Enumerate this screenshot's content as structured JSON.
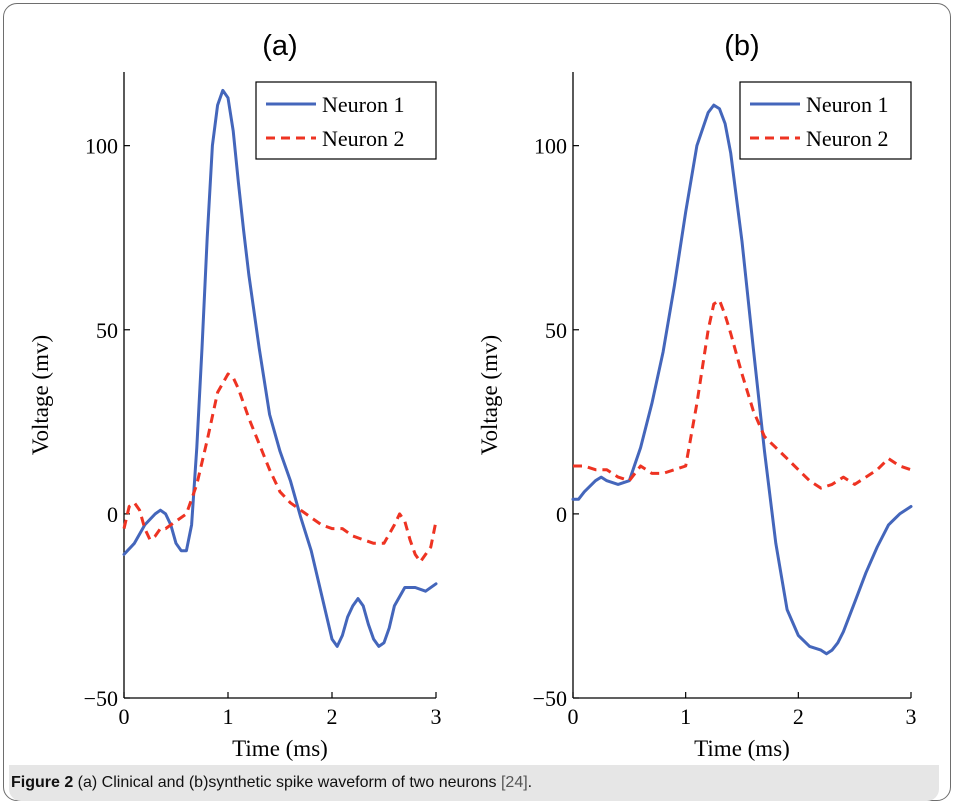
{
  "chart_data": [
    {
      "type": "line",
      "title": "(a)",
      "xlabel": "Time (ms)",
      "ylabel": "Voltage (mv)",
      "xlim": [
        0,
        3
      ],
      "ylim": [
        -50,
        120
      ],
      "xticks": [
        0,
        1,
        2,
        3
      ],
      "yticks": [
        -50,
        0,
        50,
        100
      ],
      "legend": "top-right",
      "grid": false,
      "series": [
        {
          "name": "Neuron 1",
          "color": "#4466bb",
          "style": "solid",
          "x": [
            0,
            0.1,
            0.2,
            0.3,
            0.35,
            0.4,
            0.45,
            0.5,
            0.55,
            0.6,
            0.65,
            0.7,
            0.75,
            0.8,
            0.85,
            0.9,
            0.95,
            1.0,
            1.05,
            1.1,
            1.15,
            1.2,
            1.3,
            1.4,
            1.5,
            1.6,
            1.7,
            1.8,
            1.9,
            2.0,
            2.05,
            2.1,
            2.15,
            2.2,
            2.25,
            2.3,
            2.35,
            2.4,
            2.45,
            2.5,
            2.55,
            2.6,
            2.7,
            2.8,
            2.9,
            3.0
          ],
          "y": [
            -11,
            -8,
            -3,
            0,
            1,
            0,
            -3,
            -8,
            -10,
            -10,
            -3,
            18,
            45,
            75,
            100,
            111,
            115,
            113,
            104,
            90,
            77,
            65,
            45,
            27,
            17,
            9,
            -1,
            -10,
            -22,
            -34,
            -36,
            -33,
            -28,
            -25,
            -23,
            -25,
            -30,
            -34,
            -36,
            -35,
            -31,
            -25,
            -20,
            -20,
            -21,
            -19
          ]
        },
        {
          "name": "Neuron 2",
          "color": "#ee3322",
          "style": "dashed",
          "x": [
            0,
            0.05,
            0.1,
            0.15,
            0.2,
            0.25,
            0.3,
            0.35,
            0.4,
            0.5,
            0.6,
            0.7,
            0.8,
            0.9,
            1.0,
            1.05,
            1.1,
            1.2,
            1.3,
            1.4,
            1.5,
            1.6,
            1.7,
            1.8,
            1.9,
            2.0,
            2.1,
            2.2,
            2.3,
            2.4,
            2.5,
            2.6,
            2.65,
            2.7,
            2.75,
            2.8,
            2.85,
            2.9,
            2.95,
            3.0
          ],
          "y": [
            -4,
            2,
            3,
            1,
            -4,
            -7,
            -6,
            -4,
            -4,
            -2,
            0,
            8,
            20,
            33,
            38,
            37,
            34,
            26,
            19,
            12,
            6,
            3,
            1,
            -1,
            -3,
            -4,
            -4,
            -6,
            -7,
            -8,
            -8,
            -3,
            0,
            -2,
            -7,
            -11,
            -13,
            -11,
            -9,
            -2
          ]
        }
      ]
    },
    {
      "type": "line",
      "title": "(b)",
      "xlabel": "Time (ms)",
      "ylabel": "Voltage (mv)",
      "xlim": [
        0,
        3
      ],
      "ylim": [
        -50,
        120
      ],
      "xticks": [
        0,
        1,
        2,
        3
      ],
      "yticks": [
        -50,
        0,
        50,
        100
      ],
      "legend": "top-right",
      "grid": false,
      "series": [
        {
          "name": "Neuron 1",
          "color": "#4466bb",
          "style": "solid",
          "x": [
            0,
            0.05,
            0.1,
            0.2,
            0.25,
            0.3,
            0.4,
            0.5,
            0.6,
            0.7,
            0.8,
            0.9,
            1.0,
            1.1,
            1.2,
            1.25,
            1.3,
            1.35,
            1.4,
            1.5,
            1.6,
            1.7,
            1.8,
            1.9,
            2.0,
            2.1,
            2.2,
            2.25,
            2.3,
            2.35,
            2.4,
            2.5,
            2.6,
            2.7,
            2.8,
            2.9,
            3.0
          ],
          "y": [
            4,
            4,
            6,
            9,
            10,
            9,
            8,
            9,
            18,
            30,
            44,
            62,
            82,
            100,
            109,
            111,
            110,
            106,
            98,
            74,
            45,
            17,
            -8,
            -26,
            -33,
            -36,
            -37,
            -38,
            -37,
            -35,
            -32,
            -24,
            -16,
            -9,
            -3,
            0,
            2
          ]
        },
        {
          "name": "Neuron 2",
          "color": "#ee3322",
          "style": "dashed",
          "x": [
            0,
            0.1,
            0.2,
            0.3,
            0.4,
            0.5,
            0.6,
            0.7,
            0.8,
            0.9,
            1.0,
            1.1,
            1.2,
            1.25,
            1.3,
            1.35,
            1.4,
            1.5,
            1.6,
            1.7,
            1.8,
            1.9,
            2.0,
            2.1,
            2.2,
            2.3,
            2.4,
            2.5,
            2.6,
            2.7,
            2.8,
            2.9,
            3.0
          ],
          "y": [
            13,
            13,
            12,
            12,
            10,
            9,
            13,
            11,
            11,
            12,
            13,
            30,
            50,
            57,
            58,
            54,
            49,
            38,
            28,
            21,
            18,
            15,
            12,
            9,
            7,
            8,
            10,
            8,
            10,
            12,
            15,
            13,
            12
          ]
        }
      ]
    }
  ],
  "caption": {
    "label": "Figure 2",
    "text": " (a) Clinical and (b)synthetic spike waveform of two neurons ",
    "ref": "[24]",
    "end": "."
  }
}
